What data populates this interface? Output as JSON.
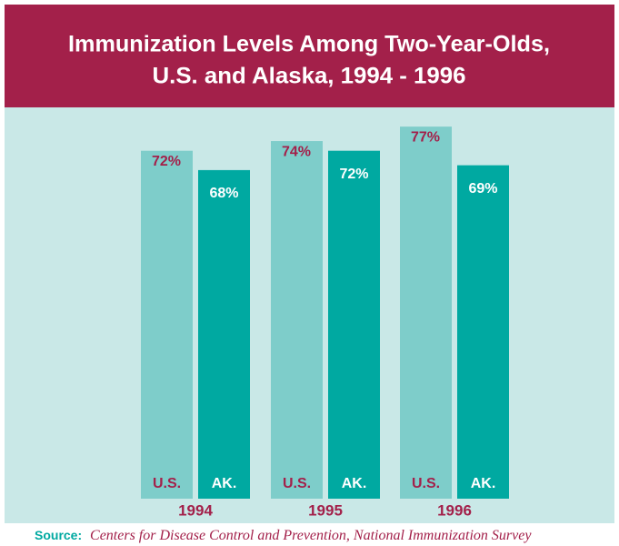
{
  "chart_data": {
    "type": "bar",
    "title": [
      "Immunization Levels Among Two-Year-Olds,",
      "U.S. and Alaska, 1994 - 1996"
    ],
    "categories": [
      "1994",
      "1995",
      "1996"
    ],
    "series": [
      {
        "name": "U.S.",
        "color": "#7ecdca",
        "values": [
          72,
          74,
          77
        ],
        "value_labels": [
          "72%",
          "74%",
          "77%"
        ]
      },
      {
        "name": "AK.",
        "color": "#00a9a1",
        "values": [
          68,
          72,
          69
        ],
        "value_labels": [
          "68%",
          "72%",
          "69%"
        ]
      }
    ],
    "source_label": "Source:",
    "source": "Centers for Disease Control and Prevention, National Immunization Survey"
  }
}
